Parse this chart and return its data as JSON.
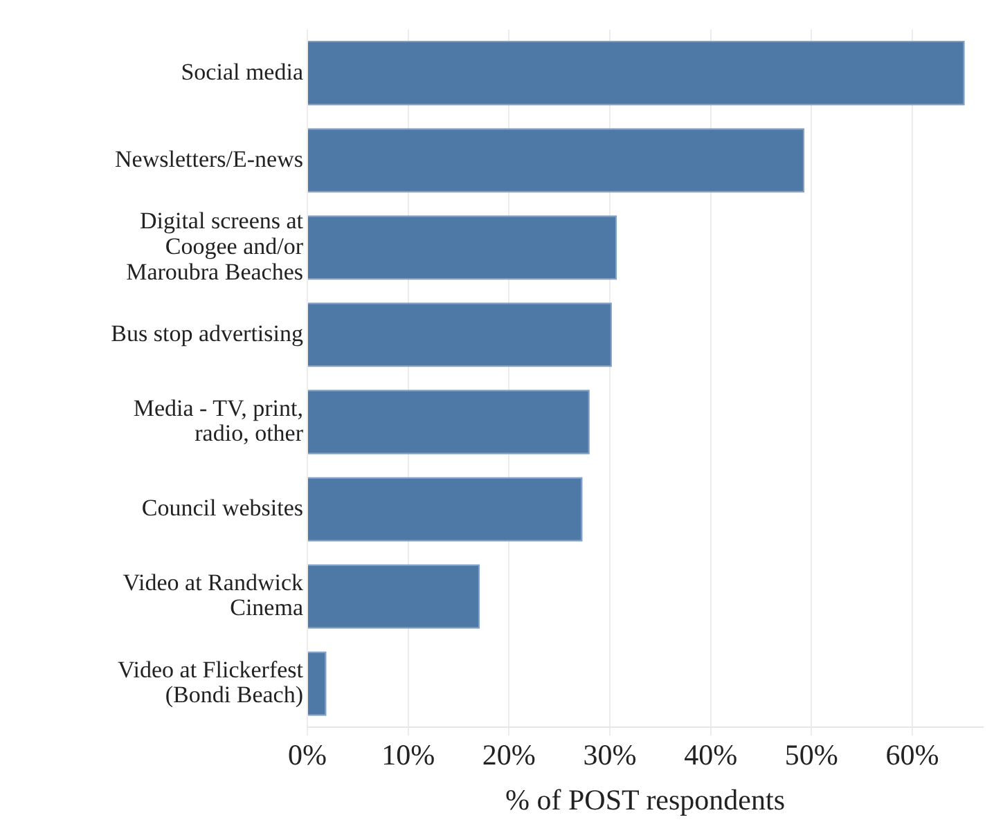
{
  "chart_data": {
    "type": "bar",
    "orientation": "horizontal",
    "xlabel": "% of POST respondents",
    "categories": [
      "Social media",
      "Newsletters/E-news",
      "Digital screens at Coogee and/or Maroubra Beaches",
      "Bus stop advertising",
      "Media - TV, print, radio, other",
      "Council websites",
      "Video at Randwick Cinema",
      "Video at Flickerfest (Bondi Beach)"
    ],
    "values": [
      65.2,
      49.3,
      30.7,
      30.2,
      28.0,
      27.3,
      17.1,
      1.9
    ],
    "color": "#4e79a7",
    "xlim": [
      0,
      67
    ],
    "xticks": [
      {
        "value": 0,
        "label": "0%"
      },
      {
        "value": 10,
        "label": "10%"
      },
      {
        "value": 20,
        "label": "20%"
      },
      {
        "value": 30,
        "label": "30%"
      },
      {
        "value": 40,
        "label": "40%"
      },
      {
        "value": 50,
        "label": "50%"
      },
      {
        "value": 60,
        "label": "60%"
      }
    ],
    "grid": "x",
    "legend": false
  }
}
